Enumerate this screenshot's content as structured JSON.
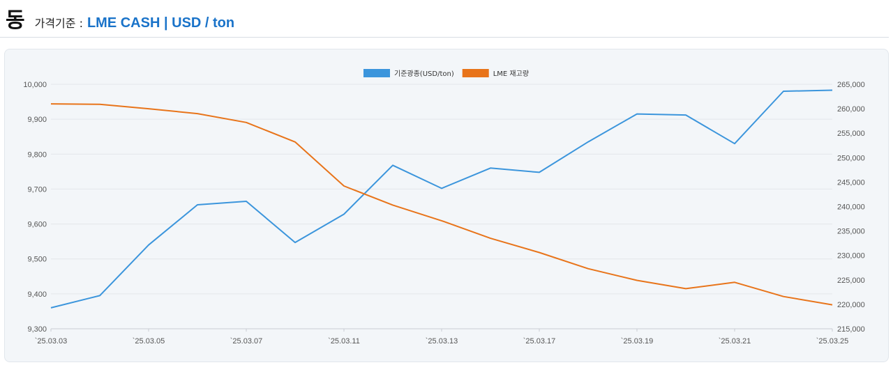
{
  "header": {
    "metal": "동",
    "basis_label": "가격기준 :",
    "basis_value": "LME CASH | USD / ton"
  },
  "chart_data": {
    "type": "line",
    "x": [
      "`25.03.03",
      "`25.03.04",
      "`25.03.05",
      "`25.03.06",
      "`25.03.07",
      "`25.03.08",
      "`25.03.11",
      "`25.03.12",
      "`25.03.13",
      "`25.03.14",
      "`25.03.17",
      "`25.03.18",
      "`25.03.19",
      "`25.03.20",
      "`25.03.21",
      "`25.03.24",
      "`25.03.25"
    ],
    "x_tick_labels": [
      "`25.03.03",
      "`25.03.05",
      "`25.03.07",
      "`25.03.11",
      "`25.03.13",
      "`25.03.17",
      "`25.03.19",
      "`25.03.21",
      "`25.03.25"
    ],
    "series": [
      {
        "name": "기준광종(USD/ton)",
        "axis": "left",
        "color": "#3b95dc",
        "values": [
          9360,
          9395,
          9540,
          9655,
          9665,
          9547,
          9628,
          9768,
          9702,
          9760,
          9748,
          9835,
          9915,
          9912,
          9830,
          9980,
          9983
        ]
      },
      {
        "name": "LME 재고량",
        "axis": "right",
        "color": "#e8741a",
        "values": [
          261000,
          260900,
          260000,
          259000,
          257200,
          253200,
          244200,
          240300,
          237100,
          233500,
          230600,
          227300,
          224900,
          223200,
          224500,
          221600,
          219900
        ]
      }
    ],
    "y_left": {
      "lim": [
        9300,
        10000
      ],
      "ticks": [
        "9,300",
        "9,400",
        "9,500",
        "9,600",
        "9,700",
        "9,800",
        "9,900",
        "10,000"
      ]
    },
    "y_right": {
      "lim": [
        215000,
        265000
      ],
      "ticks": [
        "215,000",
        "220,000",
        "225,000",
        "230,000",
        "235,000",
        "240,000",
        "245,000",
        "250,000",
        "255,000",
        "260,000",
        "265,000"
      ]
    },
    "grid": true,
    "legend_position": "top-center",
    "title": "",
    "xlabel": "",
    "ylabel": ""
  }
}
